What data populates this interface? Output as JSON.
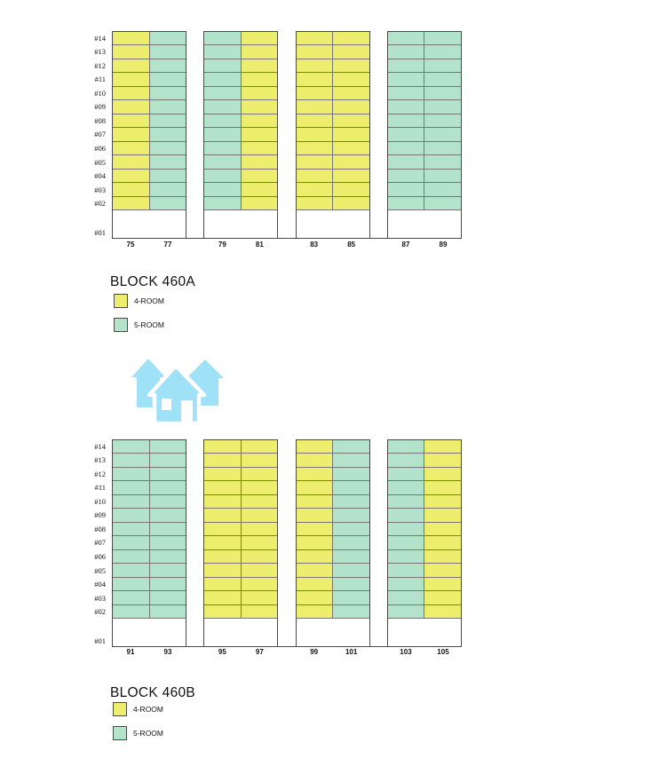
{
  "page": {
    "background": "#ffffff"
  },
  "colors": {
    "four_room": "#EDED6E",
    "five_room": "#B4E3CC",
    "grid_line_inner": "#767676",
    "grid_line_outer": "#4a4a4a",
    "icon_blue": "#9FE1F7",
    "text": "#111111"
  },
  "floors": [
    "#14",
    "#13",
    "#12",
    "#11",
    "#10",
    "#09",
    "#08",
    "#07",
    "#06",
    "#05",
    "#04",
    "#03",
    "#02"
  ],
  "ground_floor_label": "#01",
  "blocks": [
    {
      "title": "BLOCK 460A",
      "legend": [
        {
          "label": "4-ROOM",
          "type": "4-room"
        },
        {
          "label": "5-ROOM",
          "type": "5-room"
        }
      ],
      "groups": [
        {
          "units": [
            {
              "number": "75",
              "type": "4-room"
            },
            {
              "number": "77",
              "type": "5-room"
            }
          ]
        },
        {
          "units": [
            {
              "number": "79",
              "type": "5-room"
            },
            {
              "number": "81",
              "type": "4-room"
            }
          ]
        },
        {
          "units": [
            {
              "number": "83",
              "type": "4-room"
            },
            {
              "number": "85",
              "type": "4-room"
            }
          ]
        },
        {
          "units": [
            {
              "number": "87",
              "type": "5-room"
            },
            {
              "number": "89",
              "type": "5-room"
            }
          ]
        }
      ]
    },
    {
      "title": "BLOCK 460B",
      "legend": [
        {
          "label": "4-ROOM",
          "type": "4-room"
        },
        {
          "label": "5-ROOM",
          "type": "5-room"
        }
      ],
      "groups": [
        {
          "units": [
            {
              "number": "91",
              "type": "5-room"
            },
            {
              "number": "93",
              "type": "5-room"
            }
          ]
        },
        {
          "units": [
            {
              "number": "95",
              "type": "4-room"
            },
            {
              "number": "97",
              "type": "4-room"
            }
          ]
        },
        {
          "units": [
            {
              "number": "99",
              "type": "4-room"
            },
            {
              "number": "101",
              "type": "5-room"
            }
          ]
        },
        {
          "units": [
            {
              "number": "103",
              "type": "5-room"
            },
            {
              "number": "105",
              "type": "4-room"
            }
          ]
        }
      ]
    }
  ],
  "icon": {
    "name": "houses-icon"
  }
}
